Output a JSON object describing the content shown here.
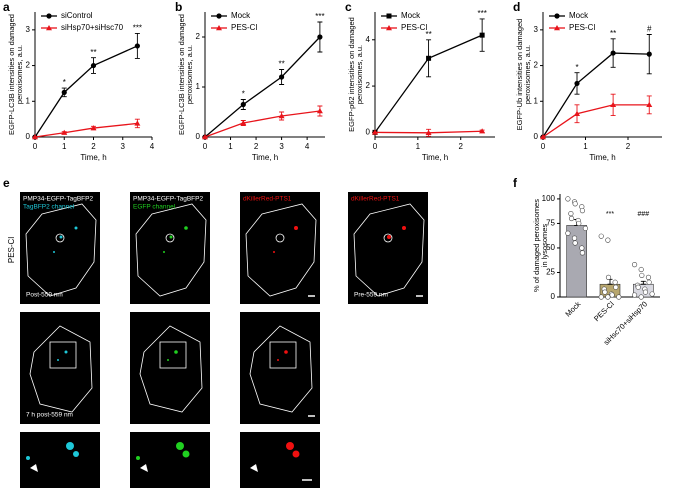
{
  "panel_labels": [
    "a",
    "b",
    "c",
    "d",
    "e",
    "f"
  ],
  "panel_e": {
    "condition": "PES-Cl",
    "reporter": "PMP34-EGFP-TagBFP2",
    "channel_blue": "TagBFP2 channel",
    "channel_green": "EGFP channel",
    "reporter_red": "dKillerRed-PTS1",
    "post": "Post-559 nm",
    "pre": "Pre-559 nm",
    "later": "7 h post-559 nm"
  },
  "chart_data": [
    {
      "type": "line",
      "ylabel": [
        "EGFP-LC3B intensities on damaged",
        "peroxisomes, a.u."
      ],
      "xlabel": "Time, h",
      "x": [
        0,
        1,
        2,
        3.5
      ],
      "xlim": [
        0,
        4
      ],
      "xticks": [
        0,
        1,
        2,
        3,
        4
      ],
      "ylim": [
        0,
        3.5
      ],
      "yticks": [
        0,
        1,
        2,
        3
      ],
      "series": [
        {
          "name": "siControl",
          "color": "#000000",
          "marker": "circle",
          "values": [
            0,
            1.25,
            2.0,
            2.55
          ],
          "errors": [
            0,
            0.12,
            0.22,
            0.35
          ]
        },
        {
          "name": "siHsp70+siHsc70",
          "color": "#e8141b",
          "marker": "triangle",
          "values": [
            0,
            0.12,
            0.25,
            0.38
          ],
          "errors": [
            0,
            0.03,
            0.05,
            0.12
          ]
        }
      ],
      "annotations": [
        null,
        "*",
        "**",
        "***"
      ]
    },
    {
      "type": "line",
      "ylabel": [
        "EGFP-LC3B intensities on damaged",
        "peroxisomes, a.u."
      ],
      "xlabel": "Time, h",
      "x": [
        0,
        1.5,
        3,
        4.5
      ],
      "xlim": [
        0,
        4.7
      ],
      "xticks": [
        0,
        1,
        2,
        3,
        4
      ],
      "ylim": [
        0,
        2.5
      ],
      "yticks": [
        0,
        1,
        2
      ],
      "series": [
        {
          "name": "Mock",
          "color": "#000000",
          "marker": "circle",
          "values": [
            0,
            0.65,
            1.2,
            2.0
          ],
          "errors": [
            0,
            0.1,
            0.15,
            0.3
          ]
        },
        {
          "name": "PES-Cl",
          "color": "#e8141b",
          "marker": "triangle",
          "values": [
            0,
            0.28,
            0.42,
            0.52
          ],
          "errors": [
            0,
            0.05,
            0.08,
            0.1
          ]
        }
      ],
      "annotations": [
        null,
        "*",
        "**",
        "***"
      ]
    },
    {
      "type": "line",
      "ylabel": [
        "EGFP-p62 intensities on damaged",
        "peroxisomes, a.u."
      ],
      "xlabel": "Time, h",
      "x": [
        0,
        1.25,
        2.5
      ],
      "xlim": [
        0,
        2.8
      ],
      "xticks": [
        0,
        1,
        2
      ],
      "ylim": [
        -0.2,
        5.2
      ],
      "yticks": [
        0,
        2,
        4
      ],
      "series": [
        {
          "name": "Mock",
          "color": "#000000",
          "marker": "square",
          "values": [
            0,
            3.2,
            4.2
          ],
          "errors": [
            0,
            0.8,
            0.7
          ]
        },
        {
          "name": "PES-Cl",
          "color": "#e8141b",
          "marker": "triangle",
          "values": [
            0,
            -0.02,
            0.05
          ],
          "errors": [
            0,
            0.15,
            0.05
          ]
        }
      ],
      "annotations": [
        null,
        "**",
        "***"
      ]
    },
    {
      "type": "line",
      "ylabel": [
        "EGFP-Ub intensities on damaged",
        "peroxisomes, a.u."
      ],
      "xlabel": "Time, h",
      "x": [
        0,
        0.8,
        1.65,
        2.5
      ],
      "xlim": [
        0,
        2.8
      ],
      "xticks": [
        0,
        1,
        2
      ],
      "ylim": [
        0,
        3.5
      ],
      "yticks": [
        0,
        1,
        2,
        3
      ],
      "series": [
        {
          "name": "Mock",
          "color": "#000000",
          "marker": "circle",
          "values": [
            0,
            1.5,
            2.35,
            2.32
          ],
          "errors": [
            0,
            0.3,
            0.4,
            0.55
          ]
        },
        {
          "name": "PES-Cl",
          "color": "#e8141b",
          "marker": "triangle",
          "values": [
            0,
            0.65,
            0.9,
            0.9
          ],
          "errors": [
            0,
            0.25,
            0.3,
            0.25
          ]
        }
      ],
      "annotations": [
        null,
        "*",
        "**",
        "#"
      ]
    },
    {
      "type": "bar",
      "ylabel": [
        "% of damaged peroxisomes",
        "in lysosomes"
      ],
      "categories": [
        "Mock",
        "PES-Cl",
        "siHsc70+siHsp70"
      ],
      "values": [
        73,
        13,
        13
      ],
      "errors": [
        6,
        5,
        3
      ],
      "colors": [
        "#a9a9b1",
        "#b7a66e",
        "#d9d9e1"
      ],
      "ylim": [
        0,
        105
      ],
      "yticks": [
        0,
        25,
        50,
        75,
        100
      ],
      "points": [
        [
          100,
          97,
          95,
          92,
          88,
          85,
          80,
          78,
          75,
          70,
          65,
          60,
          55,
          50,
          45
        ],
        [
          62,
          58,
          20,
          15,
          10,
          8,
          5,
          3,
          2,
          0,
          0,
          0
        ],
        [
          33,
          28,
          22,
          20,
          15,
          12,
          10,
          8,
          5,
          3,
          2,
          0
        ]
      ],
      "annotations": [
        null,
        "***",
        "###"
      ]
    }
  ]
}
